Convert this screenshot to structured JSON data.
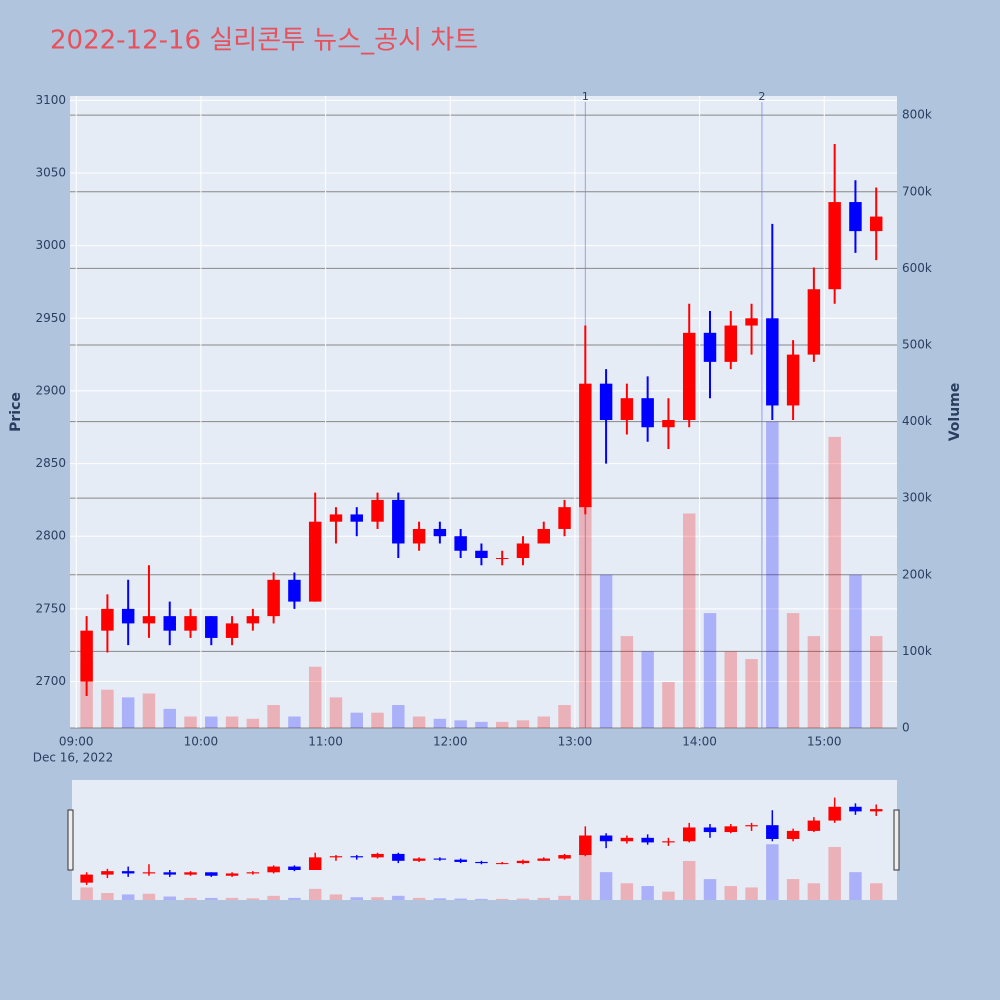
{
  "chart_data": {
    "type": "candlestick",
    "title": "2022-12-16 실리콘투 뉴스_공시 차트",
    "y_label": "Price",
    "y2_label": "Volume",
    "x_date_label": "Dec 16, 2022",
    "increasing_color": "#ff0000",
    "decreasing_color": "#0000ff",
    "x": [
      "09:00",
      "09:10",
      "09:20",
      "09:30",
      "09:40",
      "09:50",
      "10:00",
      "10:10",
      "10:20",
      "10:30",
      "10:40",
      "10:50",
      "11:00",
      "11:10",
      "11:20",
      "11:30",
      "11:40",
      "11:50",
      "12:00",
      "12:10",
      "12:20",
      "12:30",
      "12:40",
      "12:50",
      "13:00",
      "13:10",
      "13:20",
      "13:30",
      "13:40",
      "13:50",
      "14:00",
      "14:10",
      "14:20",
      "14:30",
      "14:40",
      "14:50",
      "15:00",
      "15:10",
      "15:20"
    ],
    "open": [
      2700,
      2735,
      2750,
      2740,
      2745,
      2735,
      2745,
      2730,
      2740,
      2745,
      2770,
      2755,
      2810,
      2815,
      2810,
      2825,
      2795,
      2805,
      2800,
      2790,
      2785,
      2785,
      2795,
      2805,
      2820,
      2905,
      2880,
      2895,
      2875,
      2880,
      2940,
      2920,
      2945,
      2950,
      2890,
      2925,
      2970,
      3030,
      3010
    ],
    "high": [
      2745,
      2760,
      2770,
      2780,
      2755,
      2750,
      2745,
      2745,
      2750,
      2775,
      2775,
      2830,
      2820,
      2820,
      2830,
      2830,
      2810,
      2810,
      2805,
      2795,
      2790,
      2800,
      2810,
      2825,
      2945,
      2915,
      2905,
      2910,
      2895,
      2960,
      2955,
      2955,
      2960,
      3015,
      2935,
      2985,
      3070,
      3045,
      3040
    ],
    "low": [
      2690,
      2720,
      2725,
      2730,
      2725,
      2730,
      2725,
      2725,
      2735,
      2740,
      2750,
      2755,
      2795,
      2800,
      2805,
      2785,
      2790,
      2795,
      2785,
      2780,
      2780,
      2780,
      2795,
      2800,
      2815,
      2850,
      2870,
      2865,
      2860,
      2875,
      2895,
      2915,
      2925,
      2880,
      2880,
      2920,
      2960,
      2995,
      2990
    ],
    "close": [
      2735,
      2750,
      2740,
      2745,
      2735,
      2745,
      2730,
      2740,
      2745,
      2770,
      2755,
      2810,
      2815,
      2810,
      2825,
      2795,
      2805,
      2800,
      2790,
      2785,
      2785,
      2795,
      2805,
      2820,
      2905,
      2880,
      2895,
      2875,
      2880,
      2940,
      2920,
      2945,
      2950,
      2890,
      2925,
      2970,
      3030,
      3010,
      3020
    ],
    "volume": [
      90000,
      50000,
      40000,
      45000,
      25000,
      15000,
      15000,
      15000,
      12000,
      30000,
      15000,
      80000,
      40000,
      20000,
      20000,
      30000,
      15000,
      12000,
      10000,
      8000,
      8000,
      10000,
      15000,
      30000,
      350000,
      200000,
      120000,
      100000,
      60000,
      280000,
      150000,
      100000,
      90000,
      400000,
      150000,
      120000,
      380000,
      200000,
      120000
    ],
    "xlim": [
      "08:57",
      "15:35"
    ],
    "xticks": [
      "09:00",
      "10:00",
      "11:00",
      "12:00",
      "13:00",
      "14:00",
      "15:00"
    ],
    "ylim": [
      2668,
      3103
    ],
    "yticks": [
      2700,
      2750,
      2800,
      2850,
      2900,
      2950,
      3000,
      3050,
      3100
    ],
    "y2lim": [
      0,
      825000
    ],
    "y2ticks": [
      0,
      {
        "value": 100000,
        "label": "100k"
      },
      {
        "value": 200000,
        "label": "200k"
      },
      {
        "value": 300000,
        "label": "300k"
      },
      {
        "value": 400000,
        "label": "400k"
      },
      {
        "value": 500000,
        "label": "500k"
      },
      {
        "value": 600000,
        "label": "600k"
      },
      {
        "value": 700000,
        "label": "700k"
      },
      {
        "value": 800000,
        "label": "800k"
      }
    ],
    "annotations": [
      {
        "x": "13:05",
        "label": "1"
      },
      {
        "x": "14:30",
        "label": "2"
      }
    ]
  }
}
